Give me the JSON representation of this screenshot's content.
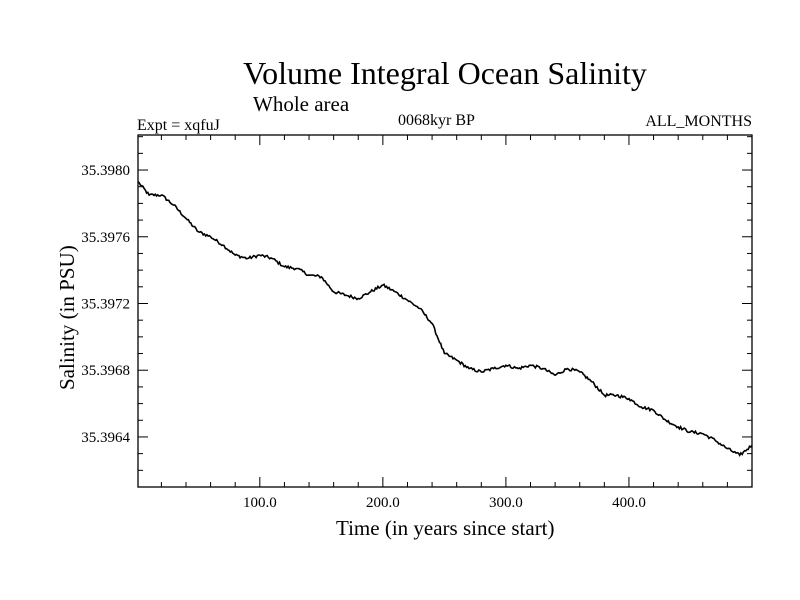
{
  "chart_data": {
    "type": "line",
    "title": "Volume Integral Ocean Salinity",
    "subtitle": "Whole area",
    "expt_label": "Expt = xqfuJ",
    "period_label": "0068kyr BP",
    "months_label": "ALL_MONTHS",
    "xlabel": "Time (in years since start)",
    "ylabel": "Salinity (in PSU)",
    "xlim": [
      1,
      500
    ],
    "ylim": [
      35.3961,
      35.39821
    ],
    "x_ticks": [
      100,
      200,
      300,
      400
    ],
    "x_tick_labels": [
      "100.0",
      "200.0",
      "300.0",
      "400.0"
    ],
    "y_ticks": [
      35.3964,
      35.3968,
      35.3972,
      35.3976,
      35.398
    ],
    "y_tick_labels": [
      "35.3964",
      "35.3968",
      "35.3972",
      "35.3976",
      "35.3980"
    ],
    "series": [
      {
        "name": "Salinity",
        "x": [
          1,
          10,
          20,
          30,
          40,
          50,
          60,
          70,
          80,
          90,
          100,
          110,
          120,
          130,
          140,
          150,
          160,
          170,
          180,
          190,
          200,
          210,
          220,
          230,
          240,
          250,
          260,
          270,
          280,
          290,
          300,
          310,
          320,
          330,
          340,
          350,
          360,
          370,
          380,
          390,
          400,
          410,
          420,
          430,
          440,
          450,
          460,
          470,
          480,
          490,
          500
        ],
        "values": [
          35.39793,
          35.39785,
          35.39785,
          35.39779,
          35.39771,
          35.39763,
          35.3976,
          35.39755,
          35.39749,
          35.39747,
          35.39749,
          35.39747,
          35.39742,
          35.39741,
          35.39737,
          35.39736,
          35.39727,
          35.39725,
          35.39723,
          35.39727,
          35.39731,
          35.39727,
          35.39722,
          35.39717,
          35.39708,
          35.3969,
          35.39686,
          35.39681,
          35.39679,
          35.39681,
          35.39683,
          35.39681,
          35.39683,
          35.39681,
          35.39677,
          35.39681,
          35.39679,
          35.39673,
          35.39665,
          35.39665,
          35.39663,
          35.39658,
          35.39656,
          35.3965,
          35.39646,
          35.39643,
          35.39642,
          35.39638,
          35.39633,
          35.39629,
          35.39635
        ]
      }
    ]
  }
}
